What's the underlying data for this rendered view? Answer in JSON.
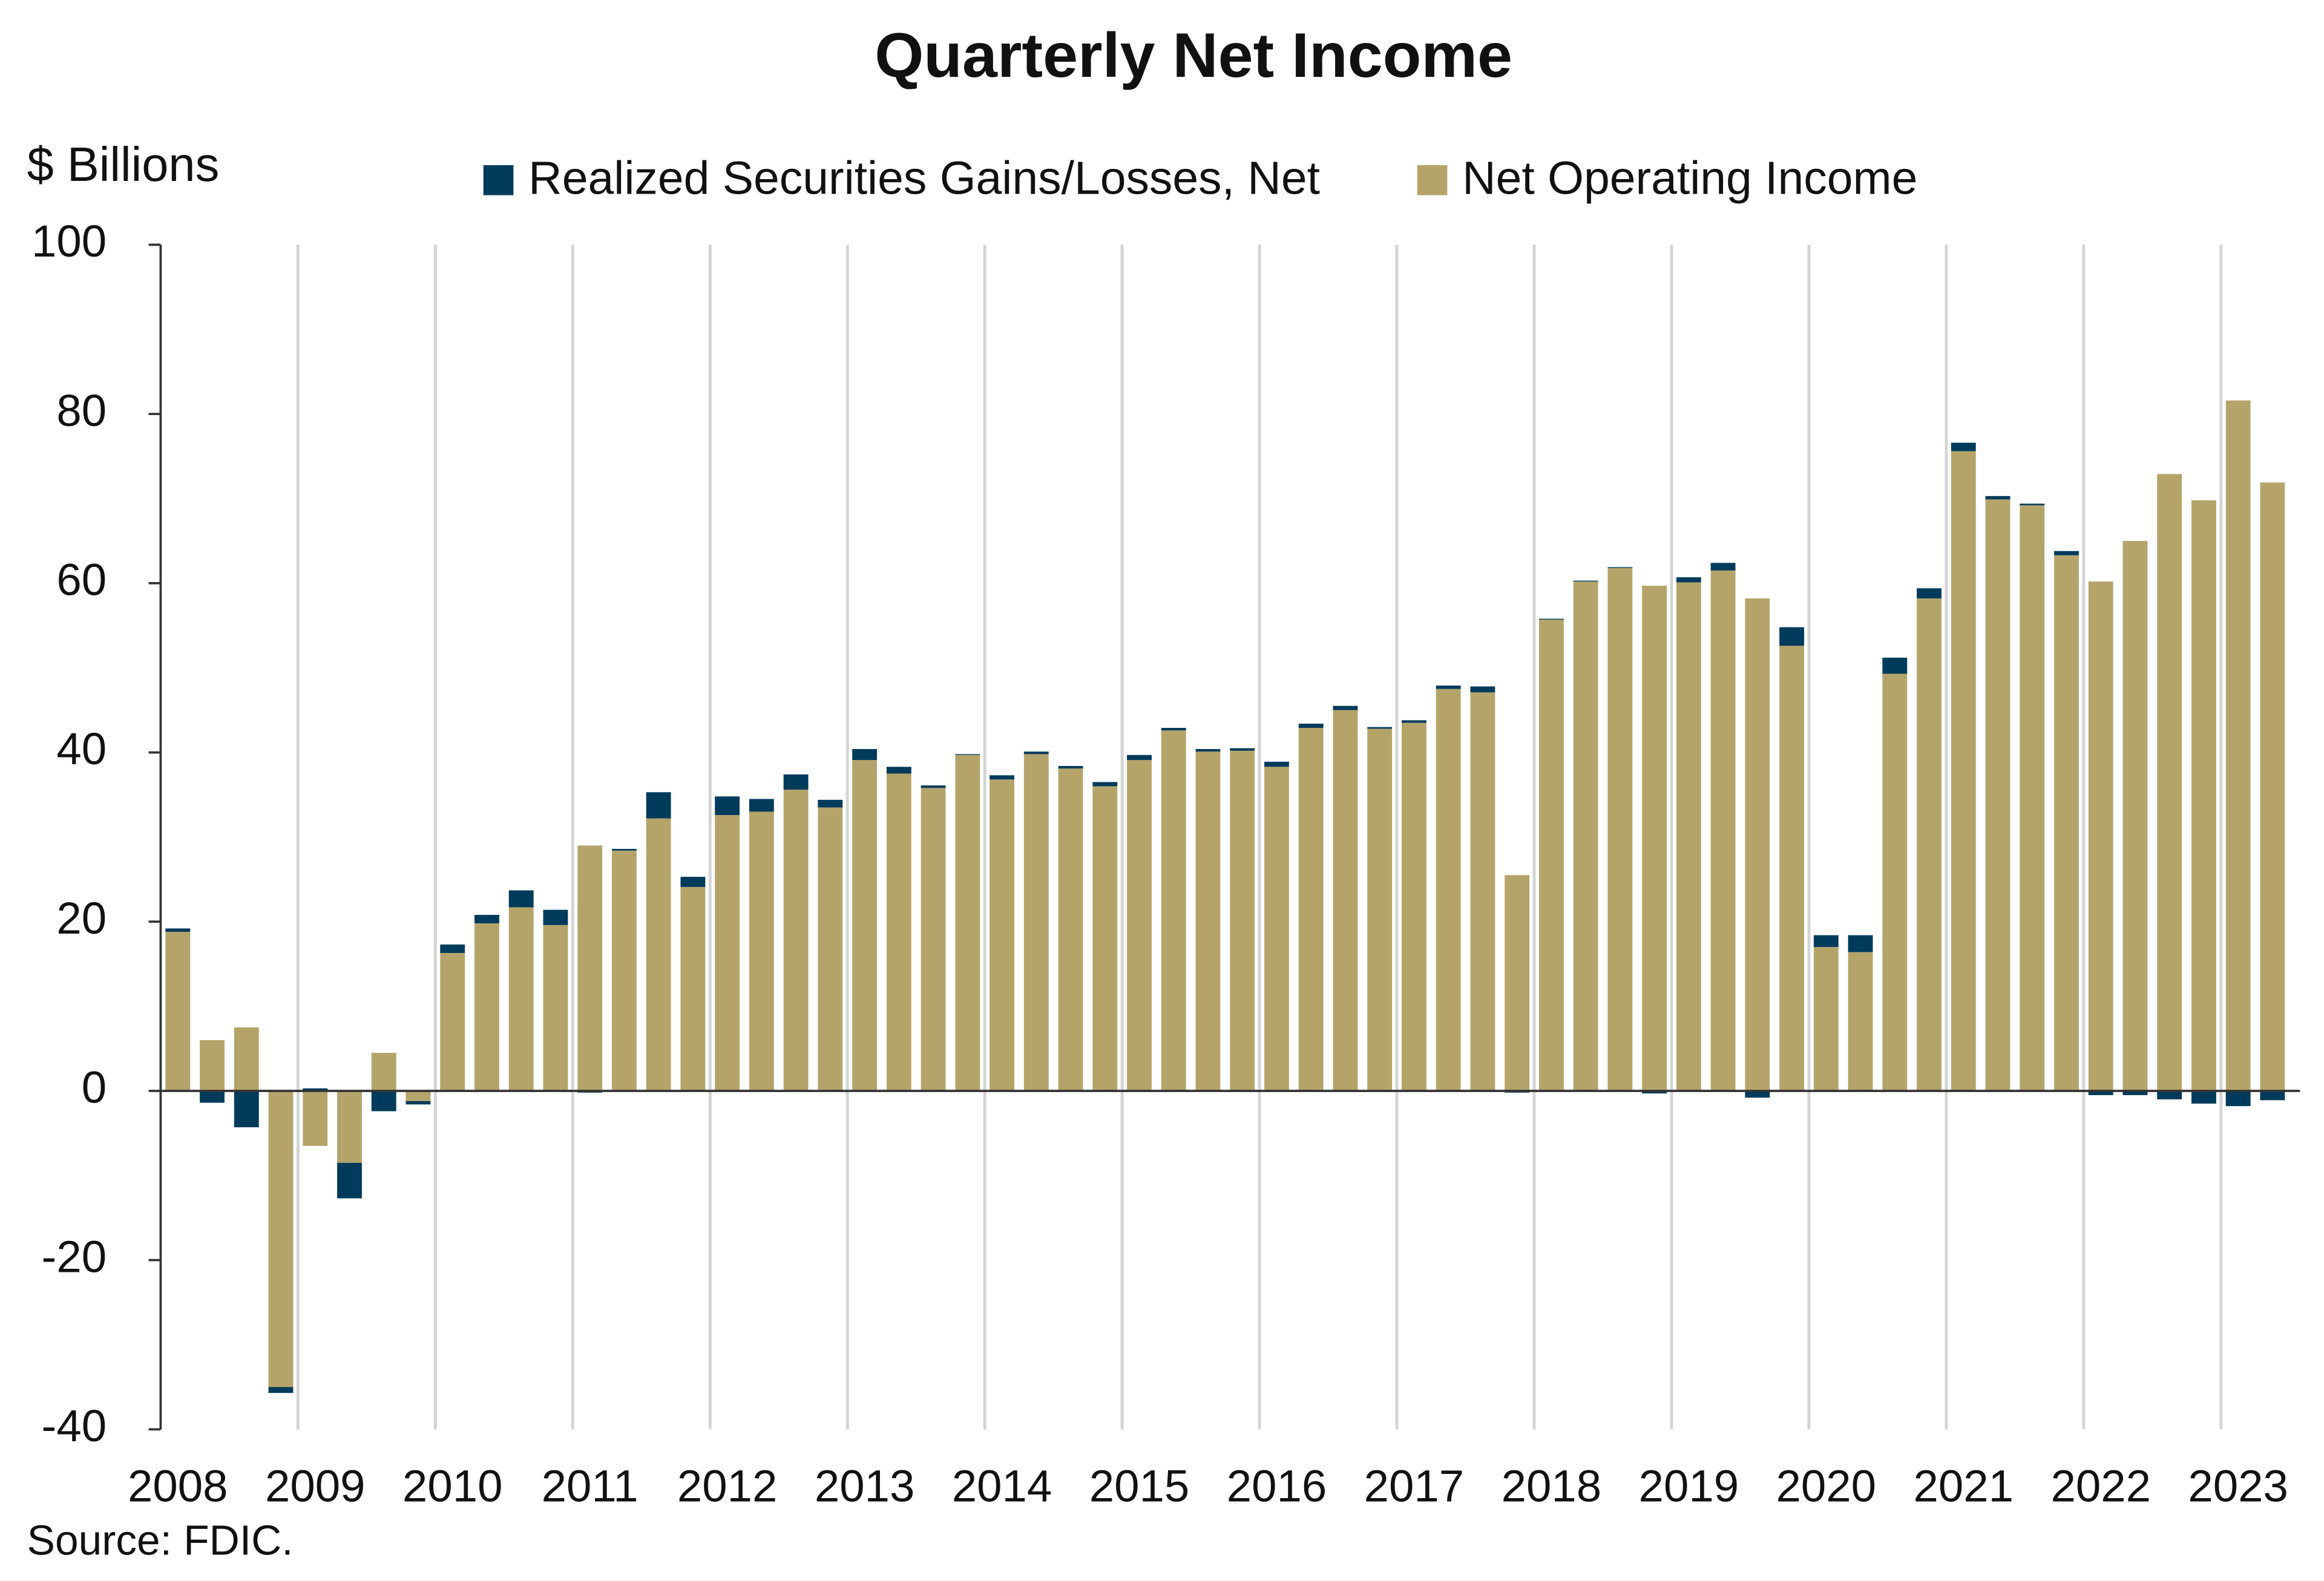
{
  "chart_data": {
    "type": "stacked_bar",
    "title": "Quarterly Net Income",
    "y_label": "$ Billions",
    "note": "Source: FDIC.",
    "categories": [
      "2008",
      null,
      null,
      null,
      "2009",
      null,
      null,
      null,
      "2010",
      null,
      null,
      null,
      "2011",
      null,
      null,
      null,
      "2012",
      null,
      null,
      null,
      "2013",
      null,
      null,
      null,
      "2014",
      null,
      null,
      null,
      "2015",
      null,
      null,
      null,
      "2016",
      null,
      null,
      null,
      "2017",
      null,
      null,
      null,
      "2018",
      null,
      null,
      null,
      "2019",
      null,
      null,
      null,
      "2020",
      null,
      null,
      null,
      "2021",
      null,
      null,
      null,
      "2022",
      null,
      null,
      null,
      "2023",
      null
    ],
    "series": [
      {
        "name": "Net Operating Income",
        "color": "#b5a46a",
        "values": [
          18.8,
          6,
          7.5,
          -35,
          -6.5,
          -8.5,
          4.5,
          -1.2,
          16.3,
          19.8,
          21.7,
          19.6,
          29,
          28.4,
          32.2,
          24.1,
          32.6,
          33,
          35.6,
          33.5,
          39.1,
          37.5,
          35.8,
          39.7,
          36.8,
          39.8,
          38.1,
          36,
          39.1,
          42.6,
          40.1,
          40.2,
          38.3,
          42.9,
          45,
          42.8,
          43.5,
          47.5,
          47.1,
          25.5,
          55.7,
          60.2,
          61.8,
          59.7,
          60.1,
          61.5,
          58.2,
          52.6,
          17,
          16.4,
          49.3,
          58.2,
          75.6,
          69.9,
          69.2,
          63.3,
          60.2,
          65,
          72.9,
          69.8,
          81.6,
          71.9
        ]
      },
      {
        "name": "Realized Securities Gains/Losses, Net",
        "color": "#003b5c",
        "values": [
          0.4,
          -1.4,
          -4.3,
          -0.7,
          0.3,
          -4.2,
          -2.4,
          -0.4,
          1.0,
          1.0,
          2.0,
          1.8,
          -0.2,
          0.2,
          3.1,
          1.2,
          2.2,
          1.5,
          1.8,
          0.9,
          1.3,
          0.8,
          0.3,
          0.1,
          0.5,
          0.3,
          0.3,
          0.5,
          0.6,
          0.3,
          0.3,
          0.3,
          0.6,
          0.5,
          0.5,
          0.2,
          0.3,
          0.4,
          0.7,
          -0.2,
          0.1,
          0.1,
          0.1,
          -0.3,
          0.6,
          0.9,
          -0.8,
          2.2,
          1.4,
          2.0,
          1.9,
          1.2,
          1.0,
          0.4,
          0.2,
          0.5,
          -0.5,
          -0.5,
          -1.0,
          -1.5,
          -1.8,
          -1.1
        ]
      }
    ],
    "ylim": [
      -40,
      100
    ],
    "yticks": [
      -40,
      -20,
      0,
      20,
      40,
      60,
      80,
      100
    ],
    "grid": true
  }
}
